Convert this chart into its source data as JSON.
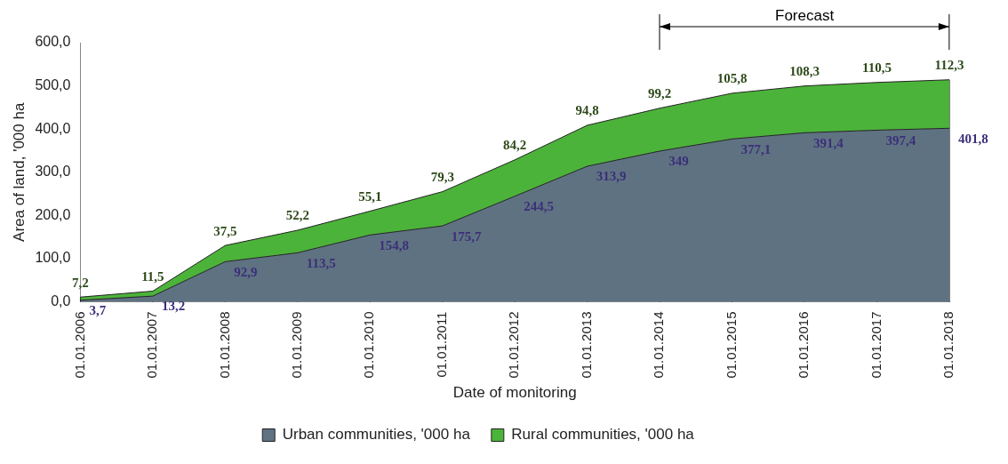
{
  "chart_data": {
    "type": "area",
    "stacked": true,
    "xlabel": "Date of monitoring",
    "ylabel": "Area of land, '000 ha",
    "categories": [
      "01.01.2006",
      "01.01.2007",
      "01.01.2008",
      "01.01.2009",
      "01.01.2010",
      "01.01.2011",
      "01.01.2012",
      "01.01.2013",
      "01.01.2014",
      "01.01.2015",
      "01.01.2016",
      "01.01.2017",
      "01.01.2018"
    ],
    "series": [
      {
        "name": "Urban communities, '000 ha",
        "color": "#5f7282",
        "values": [
          3.7,
          13.2,
          92.9,
          113.5,
          154.8,
          175.7,
          244.5,
          313.9,
          349,
          377.1,
          391.4,
          397.4,
          401.8
        ],
        "value_labels": [
          "3,7",
          "13,2",
          "92,9",
          "113,5",
          "154,8",
          "175,7",
          "244,5",
          "313,9",
          "349",
          "377,1",
          "391,4",
          "397,4",
          "401,8"
        ]
      },
      {
        "name": "Rural communities, '000 ha",
        "color": "#4cb33a",
        "values": [
          7.2,
          11.5,
          37.5,
          52.2,
          55.1,
          79.3,
          84.2,
          94.8,
          99.2,
          105.8,
          108.3,
          110.5,
          112.3
        ],
        "value_labels": [
          "7,2",
          "11,5",
          "37,5",
          "52,2",
          "55,1",
          "79,3",
          "84,2",
          "94,8",
          "99,2",
          "105,8",
          "108,3",
          "110,5",
          "112,3"
        ]
      }
    ],
    "ylim": [
      0,
      600
    ],
    "yticks": [
      {
        "value": 0,
        "label": "0,0"
      },
      {
        "value": 100,
        "label": "100,0"
      },
      {
        "value": 200,
        "label": "200,0"
      },
      {
        "value": 300,
        "label": "300,0"
      },
      {
        "value": 400,
        "label": "400,0"
      },
      {
        "value": 500,
        "label": "500,0"
      },
      {
        "value": 600,
        "label": "600,0"
      }
    ],
    "grid": "x",
    "legend": "bottom",
    "annotations": [
      "Forecast"
    ]
  }
}
